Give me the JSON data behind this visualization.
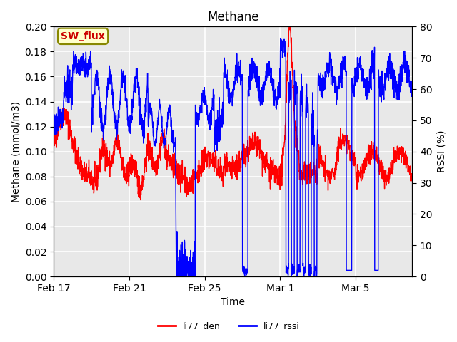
{
  "title": "Methane",
  "xlabel": "Time",
  "ylabel_left": "Methane (mmol/m3)",
  "ylabel_right": "RSSI (%)",
  "legend_label1": "li77_den",
  "legend_label2": "li77_rssi",
  "annotation": "SW_flux",
  "ylim_left": [
    0.0,
    0.2
  ],
  "ylim_right": [
    0,
    80
  ],
  "yticks_left": [
    0.0,
    0.02,
    0.04,
    0.06,
    0.08,
    0.1,
    0.12,
    0.14,
    0.16,
    0.18,
    0.2
  ],
  "yticks_right": [
    0,
    10,
    20,
    30,
    40,
    50,
    60,
    70,
    80
  ],
  "xtick_labels": [
    "Feb 17",
    "Feb 21",
    "Feb 25",
    "Mar 1",
    "Mar 5"
  ],
  "color_red": "#FF0000",
  "color_blue": "#0000FF",
  "bg_color": "#E8E8E8",
  "plot_bg": "#E8E8E8",
  "annotation_bg": "#FFFFCC",
  "annotation_border": "#888800",
  "annotation_text_color": "#CC0000",
  "figsize": [
    6.4,
    4.8
  ],
  "dpi": 100
}
